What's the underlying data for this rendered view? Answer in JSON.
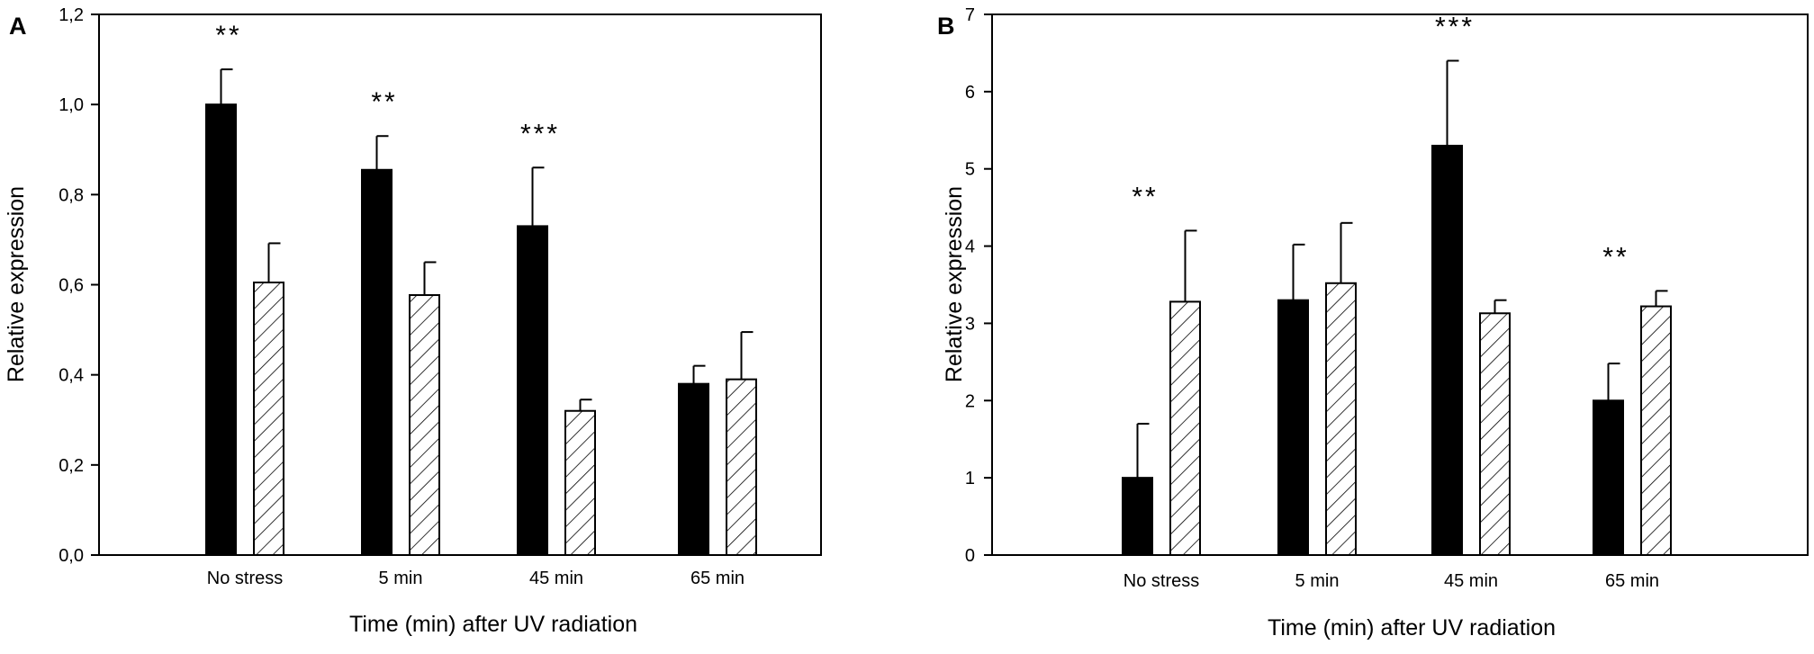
{
  "chart_data": [
    {
      "type": "bar",
      "panel_label": "A",
      "categories": [
        "No stress",
        "5 min",
        "45 min",
        "65 min"
      ],
      "series": [
        {
          "name": "solid black",
          "values": [
            1.0,
            0.855,
            0.73,
            0.38
          ],
          "errors": [
            0.078,
            0.075,
            0.13,
            0.04
          ]
        },
        {
          "name": "hatched",
          "values": [
            0.605,
            0.577,
            0.32,
            0.39
          ],
          "errors": [
            0.087,
            0.073,
            0.025,
            0.105
          ]
        }
      ],
      "significance": [
        "**",
        "**",
        "***",
        ""
      ],
      "tick_labels": [
        "0,0",
        "0,2",
        "0,4",
        "0,6",
        "0,8",
        "1,0",
        "1,2"
      ],
      "ylim": [
        0,
        1.2
      ],
      "xlabel": "Time (min) after UV radiation",
      "ylabel": "Relative expression"
    },
    {
      "type": "bar",
      "panel_label": "B",
      "categories": [
        "No stress",
        "5 min",
        "45 min",
        "65 min"
      ],
      "series": [
        {
          "name": "solid black",
          "values": [
            1.0,
            3.3,
            5.3,
            2.0
          ],
          "errors": [
            0.7,
            0.72,
            1.1,
            0.48
          ]
        },
        {
          "name": "hatched",
          "values": [
            3.28,
            3.52,
            3.13,
            3.22
          ],
          "errors": [
            0.92,
            0.78,
            0.17,
            0.2
          ]
        }
      ],
      "significance": [
        "**",
        "",
        "***",
        "**"
      ],
      "tick_labels": [
        "0",
        "1",
        "2",
        "3",
        "4",
        "5",
        "6",
        "7"
      ],
      "ylim": [
        0,
        7
      ],
      "xlabel": "Time (min) after UV radiation",
      "ylabel": "Relative expression"
    }
  ],
  "colors": {
    "solid": "#000000",
    "hatched_fill": "#ffffff",
    "axis": "#000000"
  }
}
